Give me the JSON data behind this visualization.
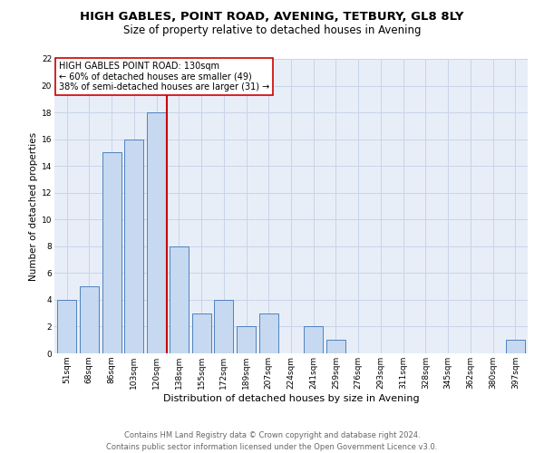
{
  "title": "HIGH GABLES, POINT ROAD, AVENING, TETBURY, GL8 8LY",
  "subtitle": "Size of property relative to detached houses in Avening",
  "xlabel": "Distribution of detached houses by size in Avening",
  "ylabel": "Number of detached properties",
  "bar_labels": [
    "51sqm",
    "68sqm",
    "86sqm",
    "103sqm",
    "120sqm",
    "138sqm",
    "155sqm",
    "172sqm",
    "189sqm",
    "207sqm",
    "224sqm",
    "241sqm",
    "259sqm",
    "276sqm",
    "293sqm",
    "311sqm",
    "328sqm",
    "345sqm",
    "362sqm",
    "380sqm",
    "397sqm"
  ],
  "bar_values": [
    4,
    5,
    15,
    16,
    18,
    8,
    3,
    4,
    2,
    3,
    0,
    2,
    1,
    0,
    0,
    0,
    0,
    0,
    0,
    0,
    1
  ],
  "bar_color": "#c6d9f1",
  "bar_edge_color": "#4f81bd",
  "marker_line_color": "#cc0000",
  "annotation_line1": "HIGH GABLES POINT ROAD: 130sqm",
  "annotation_line2": "← 60% of detached houses are smaller (49)",
  "annotation_line3": "38% of semi-detached houses are larger (31) →",
  "annotation_box_color": "#ffffff",
  "annotation_box_edge_color": "#cc0000",
  "ylim": [
    0,
    22
  ],
  "yticks": [
    0,
    2,
    4,
    6,
    8,
    10,
    12,
    14,
    16,
    18,
    20,
    22
  ],
  "grid_color": "#c8d4e8",
  "bg_color": "#e8eef8",
  "footer_line1": "Contains HM Land Registry data © Crown copyright and database right 2024.",
  "footer_line2": "Contains public sector information licensed under the Open Government Licence v3.0.",
  "title_fontsize": 9.5,
  "subtitle_fontsize": 8.5,
  "xlabel_fontsize": 8,
  "ylabel_fontsize": 7.5,
  "tick_fontsize": 6.5,
  "annotation_fontsize": 7,
  "footer_fontsize": 6
}
